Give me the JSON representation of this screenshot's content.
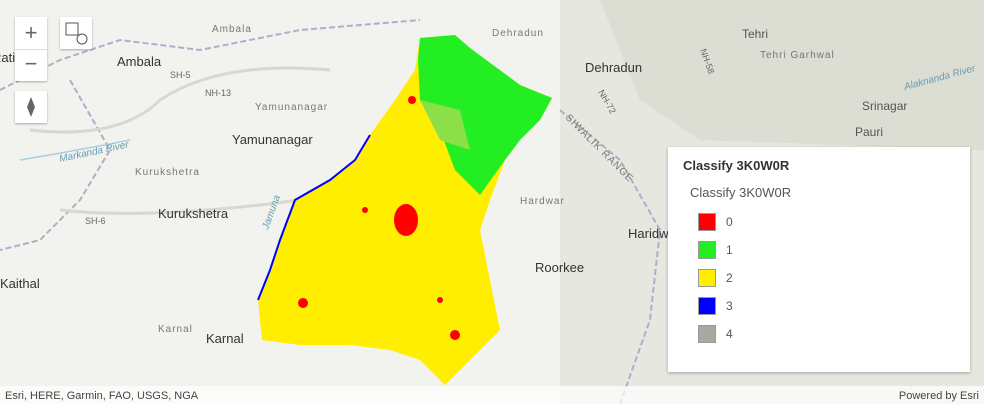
{
  "map_labels": [
    "Dehradun",
    "Dehradun",
    "Tehri",
    "Tehri Garhwal",
    "Srinagar",
    "Pauri",
    "Ambala",
    "Ambala",
    "SH-5",
    "NH-13",
    "Yamunanagar",
    "Yamunanagar",
    "Markanda River",
    "Kurukshetra",
    "Kurukshetra",
    "SH-6",
    "Jamuna",
    "Kaithal",
    "Karnal",
    "Karnal",
    "Hardwar",
    "Haridwar",
    "Roorkee",
    "NH-72",
    "SIWALIK RANGE",
    "Alaknanda River",
    "NH-58",
    "Rati"
  ],
  "legend": {
    "title": "Classify 3K0W0R",
    "subtitle": "Classify 3K0W0R",
    "items": [
      {
        "label": "0",
        "color": "#ff0000"
      },
      {
        "label": "1",
        "color": "#22ee22"
      },
      {
        "label": "2",
        "color": "#ffee00"
      },
      {
        "label": "3",
        "color": "#0000ff"
      },
      {
        "label": "4",
        "color": "#a8a8a0"
      }
    ]
  },
  "attribution": "Esri, HERE, Garmin, FAO, USGS, NGA",
  "powered_by": "Powered by Esri"
}
